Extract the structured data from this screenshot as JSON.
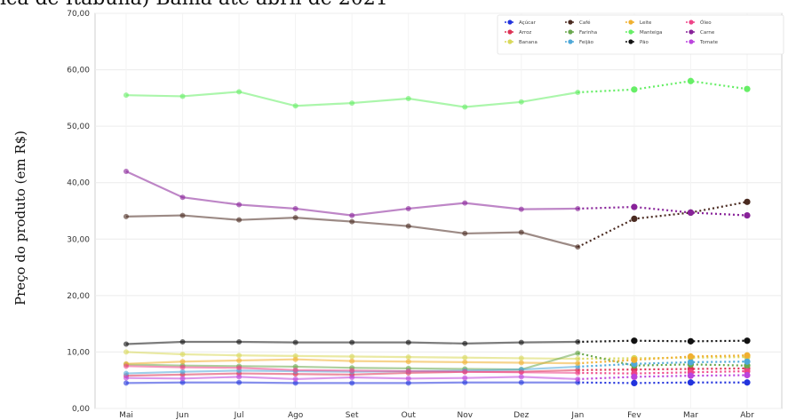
{
  "chart_data": {
    "type": "line",
    "title": "ica de Itabuna) Bahia até abril de 2021",
    "ylabel": "Preço do produto (em R$)",
    "xlabel": "",
    "categories": [
      "Mai",
      "Jun",
      "Jul",
      "Ago",
      "Set",
      "Out",
      "Nov",
      "Dez",
      "Jan",
      "Fev",
      "Mar",
      "Abr"
    ],
    "forecast_start_index": 8,
    "ylim": [
      0,
      70
    ],
    "y_ticks": [
      "0,00",
      "10,00",
      "20,00",
      "30,00",
      "40,00",
      "50,00",
      "60,00",
      "70,00"
    ],
    "grid": true,
    "legend_position": "top-right",
    "series": [
      {
        "name": "Açúcar",
        "color": "#2233dd",
        "values": [
          4.5,
          4.6,
          4.6,
          4.5,
          4.5,
          4.5,
          4.6,
          4.6,
          4.6,
          4.5,
          4.6,
          4.6
        ]
      },
      {
        "name": "Arroz",
        "color": "#dd3355",
        "values": [
          5.8,
          6.0,
          6.2,
          6.1,
          6.0,
          6.3,
          6.5,
          6.5,
          6.8,
          6.9,
          7.0,
          7.1
        ]
      },
      {
        "name": "Banana",
        "color": "#d8d85a",
        "values": [
          10.0,
          9.6,
          9.4,
          9.3,
          9.2,
          9.1,
          9.0,
          8.9,
          8.8,
          8.9,
          9.0,
          9.1
        ]
      },
      {
        "name": "Café",
        "color": "#4a2a20",
        "values": [
          34.0,
          34.2,
          33.4,
          33.8,
          33.1,
          32.3,
          31.0,
          31.2,
          28.6,
          33.6,
          34.7,
          36.6
        ]
      },
      {
        "name": "Farinha",
        "color": "#6aa84f",
        "values": [
          7.8,
          7.6,
          7.5,
          7.4,
          7.2,
          7.1,
          7.0,
          6.9,
          9.8,
          7.6,
          7.8,
          7.6
        ]
      },
      {
        "name": "Feijão",
        "color": "#4fa8d8",
        "values": [
          6.2,
          6.5,
          6.7,
          6.6,
          6.5,
          6.6,
          6.7,
          6.9,
          7.4,
          7.9,
          8.2,
          8.3
        ]
      },
      {
        "name": "Leite",
        "color": "#f0b030",
        "values": [
          7.9,
          8.3,
          8.5,
          8.7,
          8.4,
          8.3,
          8.2,
          8.1,
          8.0,
          8.6,
          9.2,
          9.4
        ]
      },
      {
        "name": "Manteiga",
        "color": "#66ee66",
        "values": [
          55.5,
          55.3,
          56.1,
          53.6,
          54.1,
          54.9,
          53.4,
          54.3,
          56.0,
          56.5,
          58.0,
          56.6
        ]
      },
      {
        "name": "Pão",
        "color": "#111111",
        "values": [
          11.4,
          11.8,
          11.8,
          11.7,
          11.7,
          11.7,
          11.5,
          11.7,
          11.8,
          12.0,
          11.9,
          12.0
        ]
      },
      {
        "name": "Óleo",
        "color": "#ee4488",
        "values": [
          7.5,
          7.3,
          7.2,
          6.8,
          6.7,
          6.6,
          6.5,
          6.4,
          6.3,
          6.2,
          6.4,
          6.6
        ]
      },
      {
        "name": "Carne",
        "color": "#882299",
        "values": [
          42.0,
          37.4,
          36.1,
          35.4,
          34.2,
          35.4,
          36.4,
          35.3,
          35.4,
          35.7,
          34.7,
          34.2
        ]
      },
      {
        "name": "Tomate",
        "color": "#bb44dd",
        "values": [
          5.4,
          5.3,
          5.6,
          5.2,
          5.5,
          5.3,
          5.4,
          5.6,
          5.2,
          5.6,
          5.8,
          5.9
        ]
      }
    ]
  }
}
